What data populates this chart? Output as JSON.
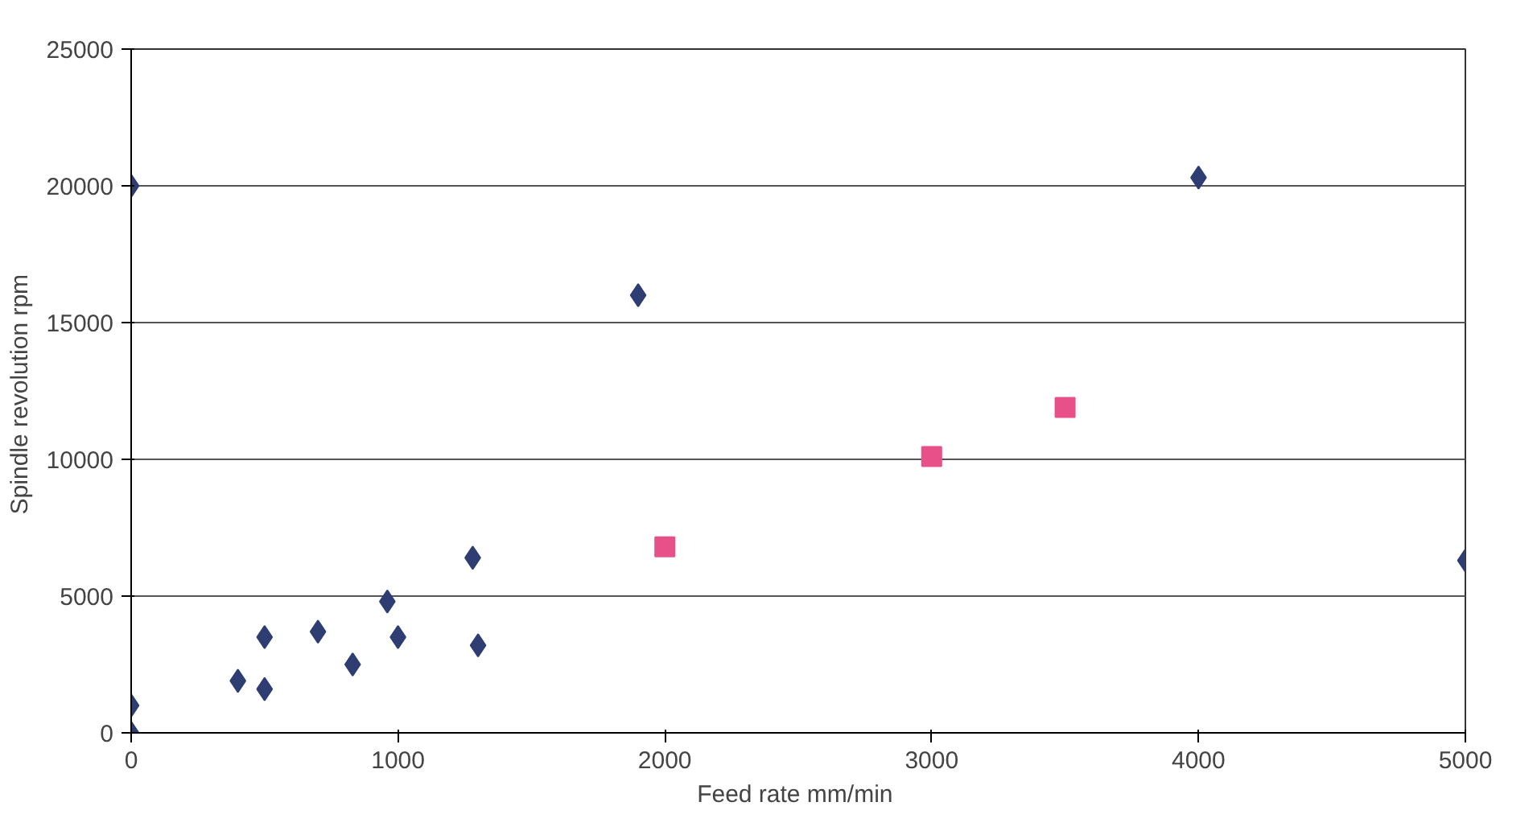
{
  "chart_data": {
    "type": "scatter",
    "xlabel": "Feed rate  mm/min",
    "ylabel": "Spindle revolution  rpm",
    "xlim": [
      0,
      5000
    ],
    "ylim": [
      0,
      25000
    ],
    "xticks": [
      0,
      1000,
      2000,
      3000,
      4000,
      5000
    ],
    "yticks": [
      0,
      5000,
      10000,
      15000,
      20000,
      25000
    ],
    "grid": "y",
    "series": [
      {
        "color": "#2e3d72",
        "marker": "diamond",
        "x": [
          0,
          0,
          0,
          400,
          500,
          500,
          700,
          830,
          960,
          1000,
          1280,
          1300,
          1900,
          4000,
          5000
        ],
        "values": [
          0,
          1000,
          20000,
          1900,
          3500,
          1600,
          3700,
          2500,
          4800,
          3500,
          6400,
          3200,
          16000,
          20300,
          6300
        ]
      },
      {
        "color": "#e8508a",
        "marker": "square",
        "x": [
          2000,
          3000,
          3500
        ],
        "values": [
          6800,
          10100,
          11900
        ]
      }
    ]
  }
}
